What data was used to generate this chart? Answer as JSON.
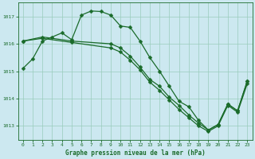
{
  "title": "Graphe pression niveau de la mer (hPa)",
  "bg_color": "#cce8f0",
  "grid_color": "#99ccbb",
  "line_color": "#1a6b2a",
  "xlim": [
    -0.5,
    23.5
  ],
  "ylim": [
    1012.5,
    1017.5
  ],
  "yticks": [
    1013,
    1014,
    1015,
    1016,
    1017
  ],
  "xticks": [
    0,
    1,
    2,
    3,
    4,
    5,
    6,
    7,
    8,
    9,
    10,
    11,
    12,
    13,
    14,
    15,
    16,
    17,
    18,
    19,
    20,
    21,
    22,
    23
  ],
  "line1_x": [
    0,
    1,
    2,
    3,
    4,
    5,
    6,
    7,
    8,
    9,
    10,
    11,
    12,
    13,
    14,
    15,
    16,
    17,
    18,
    19,
    20,
    21,
    22,
    23
  ],
  "line1_y": [
    1015.1,
    1015.45,
    1016.1,
    1016.25,
    1016.4,
    1016.15,
    1017.05,
    1017.2,
    1017.18,
    1017.05,
    1016.65,
    1016.6,
    1016.1,
    1015.5,
    1015.0,
    1014.45,
    1013.9,
    1013.7,
    1013.2,
    1012.85,
    1013.05,
    1013.8,
    1013.55,
    1014.65
  ],
  "line2_x": [
    0,
    2,
    5,
    9,
    10,
    11,
    12,
    13,
    14,
    15,
    16,
    17,
    18,
    19,
    20,
    21,
    22,
    23
  ],
  "line2_y": [
    1016.1,
    1016.25,
    1016.1,
    1016.0,
    1015.85,
    1015.55,
    1015.15,
    1014.7,
    1014.45,
    1014.05,
    1013.75,
    1013.4,
    1013.1,
    1012.85,
    1013.05,
    1013.8,
    1013.55,
    1014.65
  ],
  "line3_x": [
    0,
    2,
    5,
    9,
    10,
    11,
    12,
    13,
    14,
    15,
    16,
    17,
    18,
    19,
    20,
    21,
    22,
    23
  ],
  "line3_y": [
    1016.1,
    1016.2,
    1016.05,
    1015.85,
    1015.7,
    1015.4,
    1015.05,
    1014.6,
    1014.3,
    1013.95,
    1013.6,
    1013.3,
    1013.0,
    1012.8,
    1013.0,
    1013.75,
    1013.5,
    1014.55
  ]
}
